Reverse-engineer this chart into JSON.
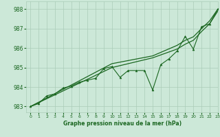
{
  "background_color": "#cce8d8",
  "grid_color": "#aaccb8",
  "line_color": "#1a6620",
  "xlim": [
    -0.5,
    23
  ],
  "ylim": [
    982.7,
    988.4
  ],
  "yticks": [
    983,
    984,
    985,
    986,
    987,
    988
  ],
  "xticks": [
    0,
    1,
    2,
    3,
    4,
    5,
    6,
    7,
    8,
    9,
    10,
    11,
    12,
    13,
    14,
    15,
    16,
    17,
    18,
    19,
    20,
    21,
    22,
    23
  ],
  "xlabel": "Graphe pression niveau de la mer (hPa)",
  "main_x": [
    0,
    1,
    2,
    3,
    4,
    5,
    6,
    7,
    8,
    9,
    10,
    11,
    12,
    13,
    14,
    15,
    16,
    17,
    18,
    19,
    20,
    21,
    22,
    23
  ],
  "main_y": [
    983.0,
    983.15,
    983.55,
    983.65,
    983.95,
    984.05,
    984.25,
    984.35,
    984.45,
    984.95,
    985.05,
    984.5,
    984.85,
    984.85,
    984.85,
    983.85,
    985.15,
    985.45,
    985.85,
    986.6,
    985.95,
    987.1,
    987.25,
    988.0
  ],
  "smooth1_x": [
    0,
    1,
    2,
    3,
    4,
    5,
    6,
    7,
    8,
    9,
    10,
    11,
    12,
    13,
    14,
    15,
    16,
    17,
    18,
    19,
    20,
    21,
    22,
    23
  ],
  "smooth1_y": [
    983.0,
    983.22,
    983.44,
    983.66,
    983.88,
    984.1,
    984.32,
    984.54,
    984.76,
    984.98,
    985.2,
    985.28,
    985.36,
    985.44,
    985.52,
    985.6,
    985.78,
    985.96,
    986.14,
    986.4,
    986.58,
    987.0,
    987.4,
    988.0
  ],
  "smooth2_x": [
    0,
    1,
    2,
    3,
    4,
    5,
    6,
    7,
    8,
    9,
    10,
    11,
    12,
    13,
    14,
    15,
    16,
    17,
    18,
    19,
    20,
    21,
    22,
    23
  ],
  "smooth2_y": [
    983.0,
    983.2,
    983.4,
    983.6,
    983.8,
    984.0,
    984.2,
    984.4,
    984.6,
    984.8,
    985.0,
    985.1,
    985.2,
    985.3,
    985.4,
    985.5,
    985.65,
    985.8,
    985.95,
    986.2,
    986.4,
    986.85,
    987.25,
    987.9
  ]
}
